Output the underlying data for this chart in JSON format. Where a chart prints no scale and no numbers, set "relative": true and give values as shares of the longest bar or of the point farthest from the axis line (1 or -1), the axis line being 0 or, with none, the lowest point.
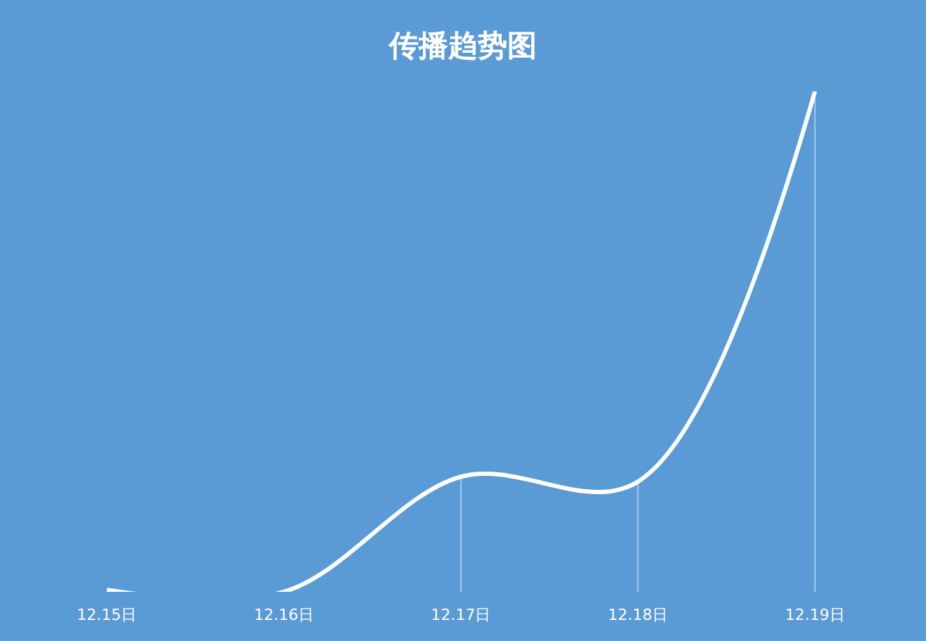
{
  "chart_data": {
    "type": "line",
    "title": "传播趋势图",
    "categories": [
      "12.15日",
      "12.16日",
      "12.17日",
      "12.18日",
      "12.19日"
    ],
    "values": [
      0.004,
      0,
      0.23,
      0.22,
      1
    ],
    "color": "#ffffff",
    "relative": true
  }
}
